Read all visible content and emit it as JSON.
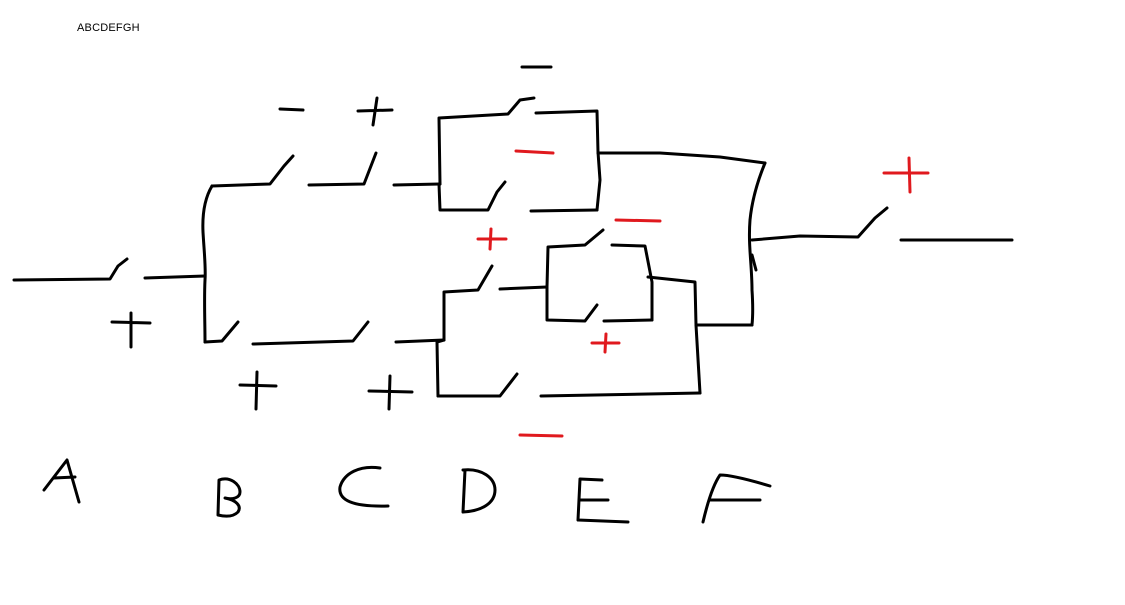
{
  "header": {
    "text": "ABCDEFGH"
  },
  "colors": {
    "ink": "#000000",
    "accent": "#e0191e",
    "background": "#ffffff"
  },
  "column_labels": [
    "A",
    "B",
    "C",
    "D",
    "E",
    "F"
  ],
  "switches": [
    {
      "id": "main-input-switch",
      "polarity": "+",
      "color": "ink"
    },
    {
      "id": "upper-left-switch",
      "polarity": "-",
      "color": "ink"
    },
    {
      "id": "upper-right-switch",
      "polarity": "+",
      "color": "ink"
    },
    {
      "id": "lower-left-switch",
      "polarity": "+",
      "color": "ink"
    },
    {
      "id": "lower-right-switch",
      "polarity": "+",
      "color": "ink"
    },
    {
      "id": "box1-top-switch",
      "polarity": "-",
      "color": "ink"
    },
    {
      "id": "box1-bottom-switch",
      "polarity": "-",
      "color": "accent"
    },
    {
      "id": "mid-entry-switch",
      "polarity": "+",
      "color": "accent"
    },
    {
      "id": "box2-top-switch",
      "polarity": "-",
      "color": "accent"
    },
    {
      "id": "box2-bottom-switch",
      "polarity": "+",
      "color": "accent"
    },
    {
      "id": "lower-loop-switch",
      "polarity": "-",
      "color": "accent"
    },
    {
      "id": "output-switch",
      "polarity": "+",
      "color": "accent"
    }
  ]
}
